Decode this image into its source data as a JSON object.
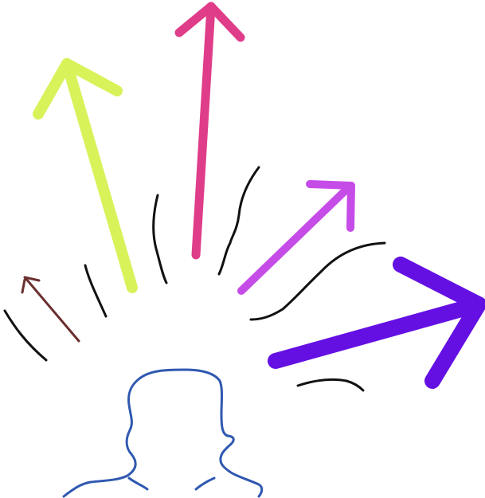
{
  "scene": {
    "background": "#ffffff",
    "elements": [
      {
        "name": "brown-arrow-icon",
        "color": "#6b2f2f"
      },
      {
        "name": "lime-arrow-icon",
        "color": "#d8f25a"
      },
      {
        "name": "pink-arrow-icon",
        "color": "#df3d8a"
      },
      {
        "name": "violet-arrow-icon",
        "color": "#c64ce8"
      },
      {
        "name": "purple-arrow-icon",
        "color": "#6410e3"
      },
      {
        "name": "person-head-outline",
        "color": "#2f58b0"
      },
      {
        "name": "motion-lines",
        "color": "#111111"
      }
    ]
  }
}
